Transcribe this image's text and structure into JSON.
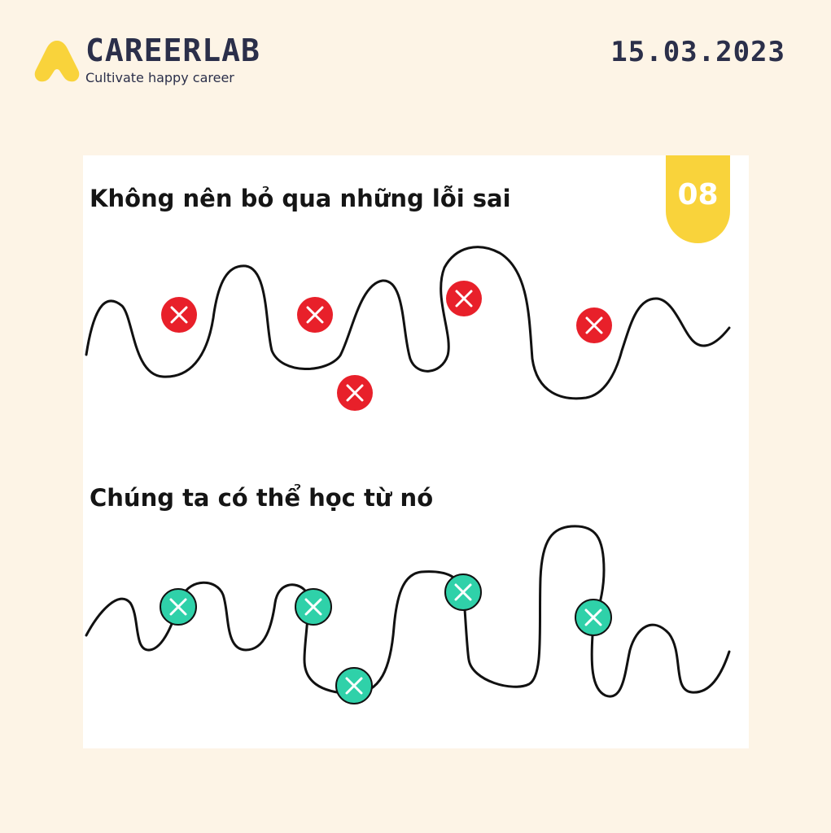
{
  "brand": {
    "name": "CAREERLAB",
    "tagline": "Cultivate happy career",
    "accent": "#f9d33b",
    "text_color": "#2b2f4a"
  },
  "date": "15.03.2023",
  "card": {
    "number": "08",
    "top_heading": "Không nên bỏ qua những lỗi sai",
    "bottom_heading": "Chúng ta có thể học từ nó",
    "mistake_marker_color": "#e8202a",
    "lesson_marker_color": "#2fd1a9",
    "marker_icon": "x-icon"
  }
}
